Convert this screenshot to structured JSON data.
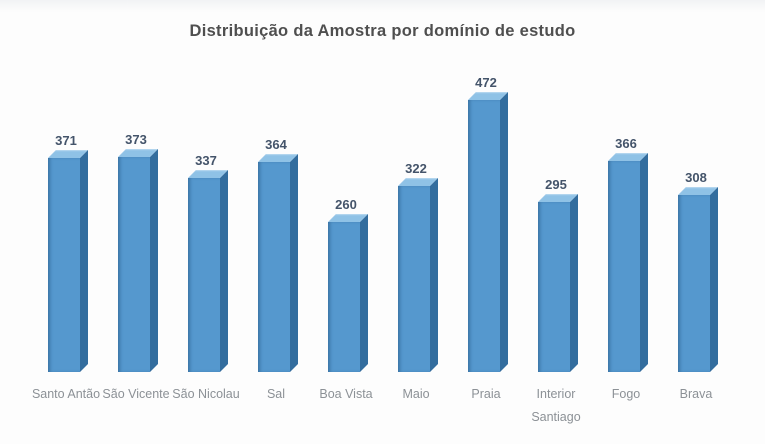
{
  "page": {
    "background": "#fdfdfd"
  },
  "chart_data": {
    "type": "bar",
    "style": "3d-column",
    "title": "Distribuição da Amostra por domínio de estudo",
    "categories": [
      "Santo Antão",
      "São Vicente",
      "São Nicolau",
      "Sal",
      "Boa Vista",
      "Maio",
      "Praia",
      "Interior Santiago",
      "Fogo",
      "Brava"
    ],
    "values": [
      371,
      373,
      337,
      364,
      260,
      322,
      472,
      295,
      366,
      308
    ],
    "xlabel": "",
    "ylabel": "",
    "ylim": [
      0,
      500
    ],
    "grid": false,
    "legend": false,
    "axes_visible": false,
    "data_labels_visible": true,
    "colors": {
      "bar_front": "#5598ce",
      "bar_side": "#336d9e",
      "bar_top": "#8fc2e6",
      "value_label": "#44546a",
      "category_label": "#8c9196",
      "title": "#4f4f4f"
    }
  }
}
